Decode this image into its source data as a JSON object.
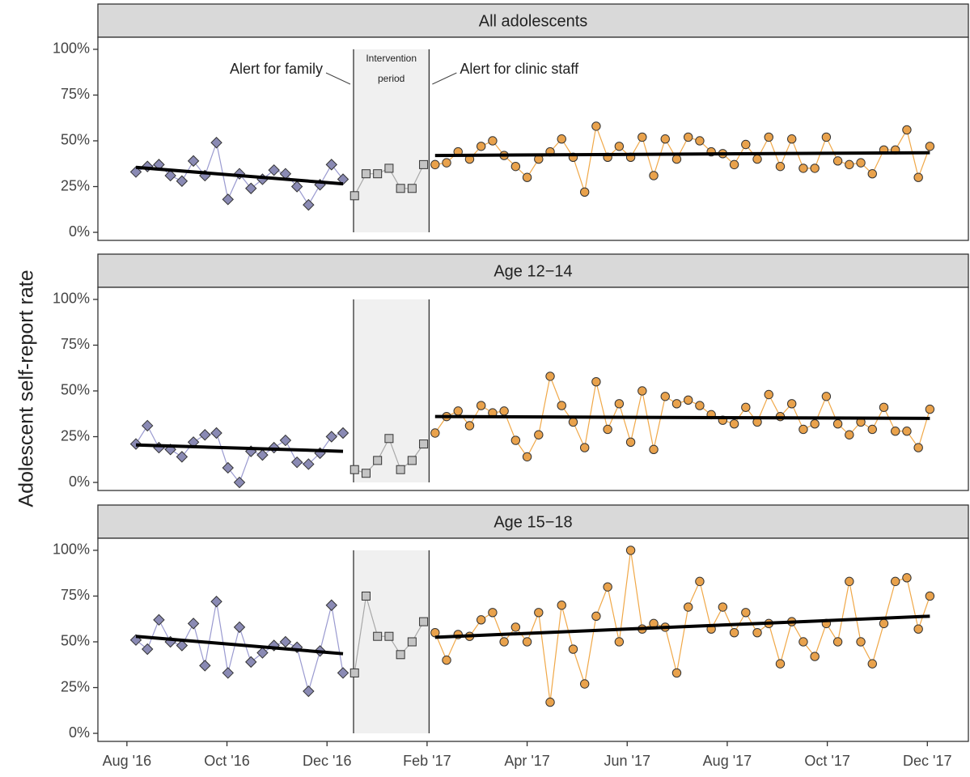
{
  "chart_data": {
    "type": "line",
    "y_label": "Adolescent self-report rate",
    "annotations": {
      "left": "Alert for family",
      "middle": [
        "Intervention",
        "period"
      ],
      "right": "Alert for clinic staff"
    },
    "intervention": [
      4.53,
      6.04
    ],
    "xlim": [
      -0.58,
      16.82
    ],
    "xticks": [
      {
        "value": 0,
        "label": "Aug '16"
      },
      {
        "value": 2,
        "label": "Oct '16"
      },
      {
        "value": 4,
        "label": "Dec '16"
      },
      {
        "value": 6,
        "label": "Feb '17"
      },
      {
        "value": 8,
        "label": "Apr '17"
      },
      {
        "value": 10,
        "label": "Jun '17"
      },
      {
        "value": 12,
        "label": "Aug '17"
      },
      {
        "value": 14,
        "label": "Oct '17"
      },
      {
        "value": 16,
        "label": "Dec '17"
      }
    ],
    "ylim": [
      -4.4,
      106.6
    ],
    "yticks": [
      {
        "value": 0,
        "label": "0%"
      },
      {
        "value": 25,
        "label": "25%"
      },
      {
        "value": 50,
        "label": "50%"
      },
      {
        "value": 75,
        "label": "75%"
      },
      {
        "value": 100,
        "label": "100%"
      }
    ],
    "x": [
      0.18,
      0.41,
      0.64,
      0.87,
      1.1,
      1.33,
      1.56,
      1.79,
      2.02,
      2.25,
      2.48,
      2.71,
      2.94,
      3.17,
      3.4,
      3.63,
      3.86,
      4.09,
      4.32,
      4.55,
      4.78,
      5.01,
      5.24,
      5.47,
      5.7,
      5.93,
      6.16,
      6.39,
      6.62,
      6.85,
      7.08,
      7.31,
      7.54,
      7.77,
      8.0,
      8.23,
      8.46,
      8.69,
      8.92,
      9.15,
      9.38,
      9.61,
      9.84,
      10.07,
      10.3,
      10.53,
      10.76,
      10.99,
      11.22,
      11.45,
      11.68,
      11.91,
      12.14,
      12.37,
      12.6,
      12.83,
      13.06,
      13.29,
      13.52,
      13.75,
      13.98,
      14.21,
      14.44,
      14.67,
      14.9,
      15.13,
      15.36,
      15.59,
      15.82,
      16.05
    ],
    "styles": [
      {
        "marker": "diamond",
        "color": "#8a8ab4",
        "line_color": "#9a9ad0"
      },
      {
        "marker": "square",
        "color": "#c4c4c4",
        "line_color": "#a8a8a8"
      },
      {
        "marker": "circle",
        "color": "#e9a24c",
        "line_color": "#f0a848"
      }
    ],
    "panels": [
      {
        "title": "All adolescents",
        "series": [
          {
            "values": [
              33,
              36,
              37,
              31,
              28,
              39,
              31,
              49,
              18,
              32,
              24,
              29,
              34,
              32,
              25,
              15,
              26,
              37,
              29,
              null,
              null,
              null,
              null,
              null,
              null,
              null,
              null,
              null,
              null,
              null,
              null,
              null,
              null,
              null,
              null,
              null,
              null,
              null,
              null,
              null,
              null,
              null,
              null,
              null,
              null,
              null,
              null,
              null,
              null,
              null,
              null,
              null,
              null,
              null,
              null,
              null,
              null,
              null,
              null,
              null,
              null,
              null,
              null,
              null,
              null,
              null,
              null,
              null,
              null,
              null
            ]
          },
          {
            "values": [
              null,
              null,
              null,
              null,
              null,
              null,
              null,
              null,
              null,
              null,
              null,
              null,
              null,
              null,
              null,
              null,
              null,
              null,
              null,
              20,
              32,
              32,
              35,
              24,
              24,
              37,
              null,
              null,
              null,
              null,
              null,
              null,
              null,
              null,
              null,
              null,
              null,
              null,
              null,
              null,
              null,
              null,
              null,
              null,
              null,
              null,
              null,
              null,
              null,
              null,
              null,
              null,
              null,
              null,
              null,
              null,
              null,
              null,
              null,
              null,
              null,
              null,
              null,
              null,
              null,
              null,
              null,
              null,
              null,
              null
            ]
          },
          {
            "values": [
              null,
              null,
              null,
              null,
              null,
              null,
              null,
              null,
              null,
              null,
              null,
              null,
              null,
              null,
              null,
              null,
              null,
              null,
              null,
              null,
              null,
              null,
              null,
              null,
              null,
              null,
              37,
              38,
              44,
              40,
              47,
              50,
              42,
              36,
              30,
              40,
              44,
              51,
              41,
              22,
              58,
              41,
              47,
              41,
              52,
              31,
              51,
              40,
              52,
              50,
              44,
              43,
              37,
              48,
              40,
              52,
              36,
              51,
              35,
              35,
              52,
              39,
              37,
              38,
              32,
              45,
              45,
              56,
              30,
              47
            ]
          }
        ],
        "trends": [
          {
            "x": [
              0.18,
              4.32
            ],
            "values": [
              35.5,
              26.5
            ]
          },
          {
            "x": [
              6.16,
              16.05
            ],
            "values": [
              42,
              43.5
            ]
          }
        ]
      },
      {
        "title": "Age 12−14",
        "series": [
          {
            "values": [
              21,
              31,
              19,
              18,
              14,
              22,
              26,
              27,
              8,
              0,
              17,
              15,
              19,
              23,
              11,
              10,
              16,
              25,
              27,
              null,
              null,
              null,
              null,
              null,
              null,
              null,
              null,
              null,
              null,
              null,
              null,
              null,
              null,
              null,
              null,
              null,
              null,
              null,
              null,
              null,
              null,
              null,
              null,
              null,
              null,
              null,
              null,
              null,
              null,
              null,
              null,
              null,
              null,
              null,
              null,
              null,
              null,
              null,
              null,
              null,
              null,
              null,
              null,
              null,
              null,
              null,
              null,
              null,
              null,
              null
            ]
          },
          {
            "values": [
              null,
              null,
              null,
              null,
              null,
              null,
              null,
              null,
              null,
              null,
              null,
              null,
              null,
              null,
              null,
              null,
              null,
              null,
              null,
              7,
              5,
              12,
              24,
              7,
              12,
              21,
              null,
              null,
              null,
              null,
              null,
              null,
              null,
              null,
              null,
              null,
              null,
              null,
              null,
              null,
              null,
              null,
              null,
              null,
              null,
              null,
              null,
              null,
              null,
              null,
              null,
              null,
              null,
              null,
              null,
              null,
              null,
              null,
              null,
              null,
              null,
              null,
              null,
              null,
              null,
              null,
              null,
              null,
              null,
              null
            ]
          },
          {
            "values": [
              null,
              null,
              null,
              null,
              null,
              null,
              null,
              null,
              null,
              null,
              null,
              null,
              null,
              null,
              null,
              null,
              null,
              null,
              null,
              null,
              null,
              null,
              null,
              null,
              null,
              null,
              27,
              36,
              39,
              31,
              42,
              38,
              39,
              23,
              14,
              26,
              58,
              42,
              33,
              19,
              55,
              29,
              43,
              22,
              50,
              18,
              47,
              43,
              45,
              42,
              37,
              34,
              32,
              41,
              33,
              48,
              36,
              43,
              29,
              32,
              47,
              32,
              26,
              33,
              29,
              41,
              28,
              28,
              19,
              40
            ]
          }
        ],
        "trends": [
          {
            "x": [
              0.18,
              4.32
            ],
            "values": [
              20.5,
              17
            ]
          },
          {
            "x": [
              6.16,
              16.05
            ],
            "values": [
              36,
              35
            ]
          }
        ]
      },
      {
        "title": "Age 15−18",
        "series": [
          {
            "values": [
              51,
              46,
              62,
              50,
              48,
              60,
              37,
              72,
              33,
              58,
              39,
              44,
              48,
              50,
              47,
              23,
              45,
              70,
              33,
              null,
              null,
              null,
              null,
              null,
              null,
              null,
              null,
              null,
              null,
              null,
              null,
              null,
              null,
              null,
              null,
              null,
              null,
              null,
              null,
              null,
              null,
              null,
              null,
              null,
              null,
              null,
              null,
              null,
              null,
              null,
              null,
              null,
              null,
              null,
              null,
              null,
              null,
              null,
              null,
              null,
              null,
              null,
              null,
              null,
              null,
              null,
              null,
              null,
              null,
              null
            ]
          },
          {
            "values": [
              null,
              null,
              null,
              null,
              null,
              null,
              null,
              null,
              null,
              null,
              null,
              null,
              null,
              null,
              null,
              null,
              null,
              null,
              null,
              33,
              75,
              53,
              53,
              43,
              50,
              61,
              null,
              null,
              null,
              null,
              null,
              null,
              null,
              null,
              null,
              null,
              null,
              null,
              null,
              null,
              null,
              null,
              null,
              null,
              null,
              null,
              null,
              null,
              null,
              null,
              null,
              null,
              null,
              null,
              null,
              null,
              null,
              null,
              null,
              null,
              null,
              null,
              null,
              null,
              null,
              null,
              null,
              null,
              null,
              null
            ]
          },
          {
            "values": [
              null,
              null,
              null,
              null,
              null,
              null,
              null,
              null,
              null,
              null,
              null,
              null,
              null,
              null,
              null,
              null,
              null,
              null,
              null,
              null,
              null,
              null,
              null,
              null,
              null,
              null,
              55,
              40,
              54,
              53,
              62,
              66,
              50,
              58,
              50,
              66,
              17,
              70,
              46,
              27,
              64,
              80,
              50,
              100,
              57,
              60,
              58,
              33,
              69,
              83,
              57,
              69,
              55,
              66,
              55,
              60,
              38,
              61,
              50,
              42,
              60,
              50,
              83,
              50,
              38,
              60,
              83,
              85,
              57,
              75
            ]
          }
        ],
        "trends": [
          {
            "x": [
              0.18,
              4.32
            ],
            "values": [
              53,
              43.5
            ]
          },
          {
            "x": [
              6.16,
              16.05
            ],
            "values": [
              52.5,
              64
            ]
          }
        ]
      }
    ]
  }
}
